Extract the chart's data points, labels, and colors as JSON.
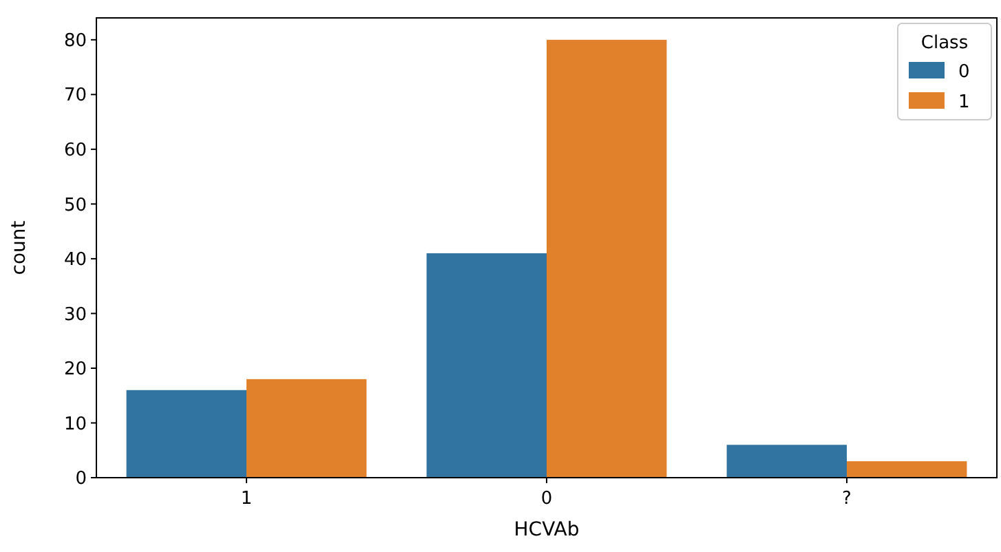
{
  "chart_data": {
    "type": "bar",
    "xlabel": "HCVAb",
    "ylabel": "count",
    "categories": [
      "1",
      "0",
      "?"
    ],
    "series": [
      {
        "name": "0",
        "color": "#3274a1",
        "values": [
          16,
          41,
          6
        ]
      },
      {
        "name": "1",
        "color": "#e1812c",
        "values": [
          18,
          80,
          3
        ]
      }
    ],
    "ylim": [
      0,
      84
    ],
    "yticks": [
      0,
      10,
      20,
      30,
      40,
      50,
      60,
      70,
      80
    ],
    "legend": "top right",
    "legend_title": "Class",
    "grid": false
  }
}
